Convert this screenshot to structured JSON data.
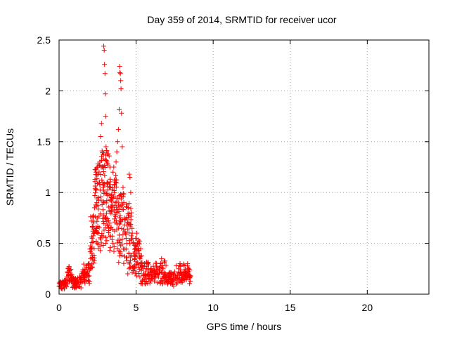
{
  "chart_data": {
    "type": "scatter",
    "title": "Day 359 of 2014, SRMTID for receiver ucor",
    "xlabel": "GPS time / hours",
    "ylabel": "SRMTID / TECUs",
    "xlim": [
      0,
      24
    ],
    "ylim": [
      0,
      2.5
    ],
    "xticks": [
      0,
      5,
      10,
      15,
      20
    ],
    "xtick_labels": [
      "0",
      "5",
      "10",
      "15",
      "20"
    ],
    "yticks": [
      0,
      0.5,
      1,
      1.5,
      2,
      2.5
    ],
    "ytick_labels": [
      "0",
      "0.5",
      "1",
      "1.5",
      "2",
      "2.5"
    ],
    "grid": true,
    "marker": "+",
    "color": "#ff0000",
    "series": [
      {
        "name": "SRMTID",
        "points": [
          [
            0.0,
            0.08
          ],
          [
            0.05,
            0.1
          ],
          [
            0.1,
            0.12
          ],
          [
            0.15,
            0.09
          ],
          [
            0.2,
            0.11
          ],
          [
            0.25,
            0.13
          ],
          [
            0.3,
            0.1
          ],
          [
            0.35,
            0.12
          ],
          [
            0.4,
            0.14
          ],
          [
            0.45,
            0.11
          ],
          [
            0.5,
            0.17
          ],
          [
            0.55,
            0.21
          ],
          [
            0.6,
            0.25
          ],
          [
            0.65,
            0.27
          ],
          [
            0.7,
            0.23
          ],
          [
            0.75,
            0.19
          ],
          [
            0.8,
            0.16
          ],
          [
            0.85,
            0.14
          ],
          [
            0.9,
            0.12
          ],
          [
            0.95,
            0.1
          ],
          [
            1.0,
            0.09
          ],
          [
            1.05,
            0.11
          ],
          [
            1.1,
            0.13
          ],
          [
            1.15,
            0.12
          ],
          [
            1.2,
            0.1
          ],
          [
            1.25,
            0.12
          ],
          [
            1.3,
            0.14
          ],
          [
            1.35,
            0.17
          ],
          [
            1.4,
            0.16
          ],
          [
            1.45,
            0.2
          ],
          [
            1.5,
            0.22
          ],
          [
            1.55,
            0.18
          ],
          [
            1.6,
            0.15
          ],
          [
            1.65,
            0.17
          ],
          [
            1.7,
            0.2
          ],
          [
            1.75,
            0.24
          ],
          [
            1.8,
            0.28
          ],
          [
            1.85,
            0.22
          ],
          [
            1.9,
            0.26
          ],
          [
            1.95,
            0.3
          ],
          [
            2.0,
            0.25
          ],
          [
            2.05,
            0.35
          ],
          [
            2.1,
            0.45
          ],
          [
            2.15,
            0.55
          ],
          [
            2.2,
            0.62
          ],
          [
            2.25,
            0.7
          ],
          [
            2.3,
            0.85
          ],
          [
            2.35,
            1.0
          ],
          [
            2.4,
            1.2
          ],
          [
            2.45,
            0.9
          ],
          [
            2.5,
            0.75
          ],
          [
            2.55,
            0.95
          ],
          [
            2.6,
            1.1
          ],
          [
            2.65,
            1.3
          ],
          [
            2.7,
            1.55
          ],
          [
            2.75,
            1.68
          ],
          [
            2.8,
            1.25
          ],
          [
            2.85,
            1.05
          ],
          [
            2.9,
            2.44
          ],
          [
            2.93,
            2.4
          ],
          [
            2.95,
            2.26
          ],
          [
            2.98,
            2.17
          ],
          [
            3.0,
            1.97
          ],
          [
            3.02,
            1.75
          ],
          [
            3.05,
            1.45
          ],
          [
            3.1,
            1.3
          ],
          [
            3.15,
            1.1
          ],
          [
            3.2,
            1.38
          ],
          [
            3.25,
            1.36
          ],
          [
            3.3,
            1.25
          ],
          [
            3.35,
            1.05
          ],
          [
            3.4,
            0.95
          ],
          [
            3.45,
            0.85
          ],
          [
            3.5,
            1.2
          ],
          [
            3.55,
            1.25
          ],
          [
            3.6,
            1.0
          ],
          [
            3.65,
            0.9
          ],
          [
            3.7,
            1.3
          ],
          [
            3.75,
            1.4
          ],
          [
            3.8,
            1.5
          ],
          [
            3.85,
            1.62
          ],
          [
            3.9,
            1.82
          ],
          [
            3.93,
            2.24
          ],
          [
            3.95,
            2.18
          ],
          [
            3.98,
            2.17
          ],
          [
            4.0,
            2.1
          ],
          [
            4.02,
            2.02
          ],
          [
            4.05,
            1.78
          ],
          [
            4.1,
            1.45
          ],
          [
            4.15,
            1.05
          ],
          [
            4.2,
            0.9
          ],
          [
            4.25,
            0.75
          ],
          [
            4.3,
            0.6
          ],
          [
            4.35,
            0.55
          ],
          [
            4.4,
            0.5
          ],
          [
            4.45,
            0.7
          ],
          [
            4.5,
            0.85
          ],
          [
            4.55,
            1.18
          ],
          [
            4.6,
            1.15
          ],
          [
            4.65,
            1.0
          ],
          [
            4.7,
            0.8
          ],
          [
            4.75,
            0.6
          ],
          [
            4.8,
            0.5
          ],
          [
            4.85,
            0.4
          ],
          [
            4.9,
            0.35
          ],
          [
            4.95,
            0.45
          ],
          [
            5.0,
            0.55
          ],
          [
            5.05,
            0.6
          ],
          [
            5.1,
            0.5
          ],
          [
            5.15,
            0.45
          ],
          [
            5.2,
            0.4
          ],
          [
            5.25,
            0.35
          ],
          [
            5.3,
            0.3
          ],
          [
            5.35,
            0.38
          ],
          [
            5.4,
            0.28
          ],
          [
            5.45,
            0.25
          ],
          [
            5.5,
            0.2
          ],
          [
            5.55,
            0.3
          ],
          [
            5.6,
            0.22
          ],
          [
            5.65,
            0.18
          ],
          [
            5.7,
            0.25
          ],
          [
            5.75,
            0.3
          ],
          [
            5.8,
            0.2
          ],
          [
            5.85,
            0.17
          ],
          [
            5.9,
            0.22
          ],
          [
            5.95,
            0.25
          ],
          [
            6.0,
            0.18
          ],
          [
            6.05,
            0.15
          ],
          [
            6.1,
            0.2
          ],
          [
            6.15,
            0.23
          ],
          [
            6.2,
            0.19
          ],
          [
            6.25,
            0.16
          ],
          [
            6.3,
            0.21
          ],
          [
            6.35,
            0.24
          ],
          [
            6.4,
            0.2
          ],
          [
            6.45,
            0.17
          ],
          [
            6.5,
            0.22
          ],
          [
            6.55,
            0.27
          ],
          [
            6.6,
            0.3
          ],
          [
            6.65,
            0.35
          ],
          [
            6.7,
            0.28
          ],
          [
            6.75,
            0.25
          ],
          [
            6.8,
            0.2
          ],
          [
            6.85,
            0.17
          ],
          [
            6.9,
            0.2
          ],
          [
            6.95,
            0.15
          ],
          [
            7.0,
            0.12
          ],
          [
            7.05,
            0.1
          ],
          [
            7.1,
            0.13
          ],
          [
            7.15,
            0.16
          ],
          [
            7.2,
            0.18
          ],
          [
            7.25,
            0.14
          ],
          [
            7.3,
            0.11
          ],
          [
            7.35,
            0.13
          ],
          [
            7.4,
            0.16
          ],
          [
            7.45,
            0.2
          ],
          [
            7.5,
            0.22
          ],
          [
            7.55,
            0.18
          ],
          [
            7.6,
            0.15
          ],
          [
            7.65,
            0.17
          ],
          [
            7.7,
            0.2
          ],
          [
            7.75,
            0.25
          ],
          [
            7.8,
            0.28
          ],
          [
            7.85,
            0.3
          ],
          [
            7.9,
            0.24
          ],
          [
            7.95,
            0.2
          ],
          [
            8.0,
            0.18
          ],
          [
            8.05,
            0.16
          ],
          [
            8.1,
            0.19
          ],
          [
            8.15,
            0.22
          ],
          [
            8.2,
            0.18
          ],
          [
            8.25,
            0.15
          ],
          [
            8.3,
            0.17
          ],
          [
            8.35,
            0.2
          ],
          [
            8.4,
            0.18
          ],
          [
            8.45,
            0.16
          ],
          [
            8.5,
            0.17
          ]
        ],
        "cloud": [
          {
            "from": 0.0,
            "to": 0.55,
            "low": 0.05,
            "high": 0.14,
            "n": 34
          },
          {
            "from": 0.55,
            "to": 0.85,
            "low": 0.12,
            "high": 0.28,
            "n": 24
          },
          {
            "from": 0.85,
            "to": 1.5,
            "low": 0.06,
            "high": 0.17,
            "n": 44
          },
          {
            "from": 1.5,
            "to": 2.0,
            "low": 0.1,
            "high": 0.3,
            "n": 38
          },
          {
            "from": 2.0,
            "to": 2.3,
            "low": 0.25,
            "high": 0.8,
            "n": 36
          },
          {
            "from": 2.3,
            "to": 2.75,
            "low": 0.4,
            "high": 1.3,
            "n": 60
          },
          {
            "from": 2.75,
            "to": 3.2,
            "low": 0.45,
            "high": 1.45,
            "n": 64
          },
          {
            "from": 3.2,
            "to": 3.75,
            "low": 0.4,
            "high": 1.2,
            "n": 64
          },
          {
            "from": 3.75,
            "to": 4.3,
            "low": 0.3,
            "high": 1.0,
            "n": 56
          },
          {
            "from": 4.3,
            "to": 4.75,
            "low": 0.2,
            "high": 0.9,
            "n": 44
          },
          {
            "from": 4.75,
            "to": 5.3,
            "low": 0.15,
            "high": 0.55,
            "n": 44
          },
          {
            "from": 5.3,
            "to": 6.5,
            "low": 0.1,
            "high": 0.32,
            "n": 70
          },
          {
            "from": 6.5,
            "to": 7.0,
            "low": 0.1,
            "high": 0.35,
            "n": 30
          },
          {
            "from": 7.0,
            "to": 7.6,
            "low": 0.08,
            "high": 0.22,
            "n": 36
          },
          {
            "from": 7.6,
            "to": 8.55,
            "low": 0.1,
            "high": 0.3,
            "n": 54
          }
        ]
      }
    ]
  }
}
